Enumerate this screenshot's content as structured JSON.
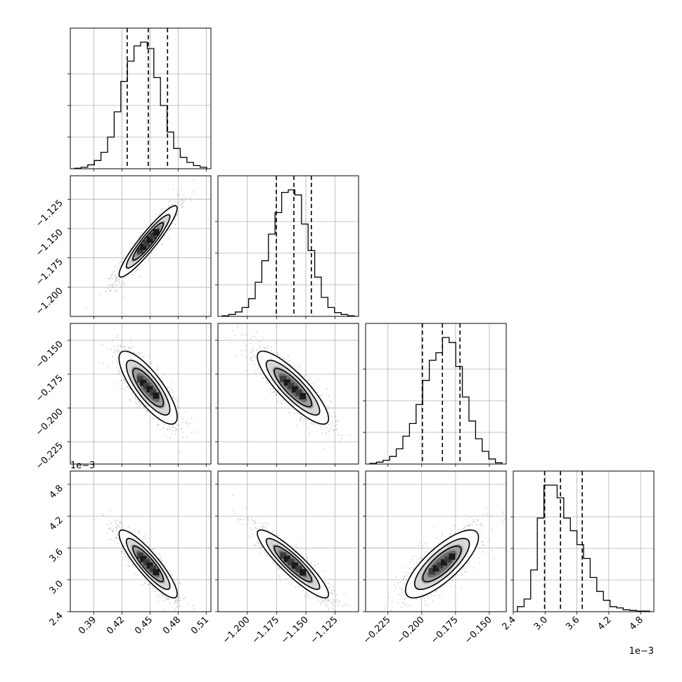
{
  "chart_data": {
    "type": "corner",
    "parameters": [
      {
        "index": 0,
        "range": [
          0.365,
          0.515
        ],
        "ticks": [
          0.39,
          0.42,
          0.45,
          0.48,
          0.51
        ],
        "tick_labels": [
          "0.39",
          "0.42",
          "0.45",
          "0.48",
          "0.51"
        ],
        "quantiles": [
          0.4257,
          0.4482,
          0.4687
        ],
        "hist": [
          0.4,
          1.2,
          3.1,
          6.5,
          13,
          25,
          45,
          69,
          85,
          97,
          100,
          95,
          72,
          50,
          29,
          16,
          9,
          5,
          2.5,
          1.2
        ]
      },
      {
        "index": 1,
        "range": [
          -1.225,
          -1.105
        ],
        "ticks": [
          -1.2,
          -1.175,
          -1.15,
          -1.125
        ],
        "tick_labels": [
          "−1.200",
          "−1.175",
          "−1.150",
          "−1.125"
        ],
        "quantiles": [
          -1.1752,
          -1.1602,
          -1.1453
        ],
        "hist": [
          0.5,
          1.5,
          3.5,
          7,
          14,
          27,
          44,
          65,
          82,
          98,
          100,
          96,
          73,
          52,
          31,
          15,
          7,
          3,
          1.5,
          0.5
        ]
      },
      {
        "index": 2,
        "range": [
          -0.2415,
          -0.1375
        ],
        "ticks": [
          -0.225,
          -0.2,
          -0.175,
          -0.15
        ],
        "tick_labels": [
          "−0.225",
          "−0.200",
          "−0.175",
          "−0.150"
        ],
        "quantiles": [
          -0.1995,
          -0.1847,
          -0.1717
        ],
        "hist": [
          0.5,
          1.5,
          3,
          6,
          12,
          22,
          32,
          47,
          66,
          82,
          88,
          100,
          96,
          77,
          53,
          34,
          20,
          10,
          4,
          1
        ]
      },
      {
        "index": 3,
        "range": [
          2.4,
          5.05
        ],
        "ticks": [
          2.4,
          3.0,
          3.6,
          4.2,
          4.8
        ],
        "tick_labels": [
          "2.4",
          "3.0",
          "3.6",
          "4.2",
          "4.8"
        ],
        "quantiles": [
          2.99,
          3.29,
          3.7
        ],
        "hist": [
          4,
          10,
          33,
          74,
          100,
          100,
          90,
          74,
          64,
          53,
          42,
          27,
          16,
          9,
          4,
          3,
          1.5,
          1,
          0.5,
          0.5
        ],
        "offset_label": "1e−3"
      }
    ],
    "pairs": [
      {
        "row": 1,
        "col": 0,
        "center": [
          0.448,
          -1.161
        ],
        "sigma": [
          0.0155,
          0.0152
        ],
        "rho": 0.93
      },
      {
        "row": 2,
        "col": 0,
        "center": [
          0.448,
          -0.185
        ],
        "sigma": [
          0.0155,
          0.0135
        ],
        "rho": -0.8
      },
      {
        "row": 2,
        "col": 1,
        "center": [
          -1.161,
          -0.185
        ],
        "sigma": [
          0.0152,
          0.0135
        ],
        "rho": -0.85
      },
      {
        "row": 3,
        "col": 0,
        "center": [
          0.448,
          3.3
        ],
        "sigma": [
          0.0155,
          0.32
        ],
        "rho": -0.88
      },
      {
        "row": 3,
        "col": 1,
        "center": [
          -1.161,
          3.3
        ],
        "sigma": [
          0.0152,
          0.32
        ],
        "rho": -0.9
      },
      {
        "row": 3,
        "col": 2,
        "center": [
          -0.185,
          3.3
        ],
        "sigma": [
          0.0135,
          0.32
        ],
        "rho": 0.78
      }
    ]
  }
}
